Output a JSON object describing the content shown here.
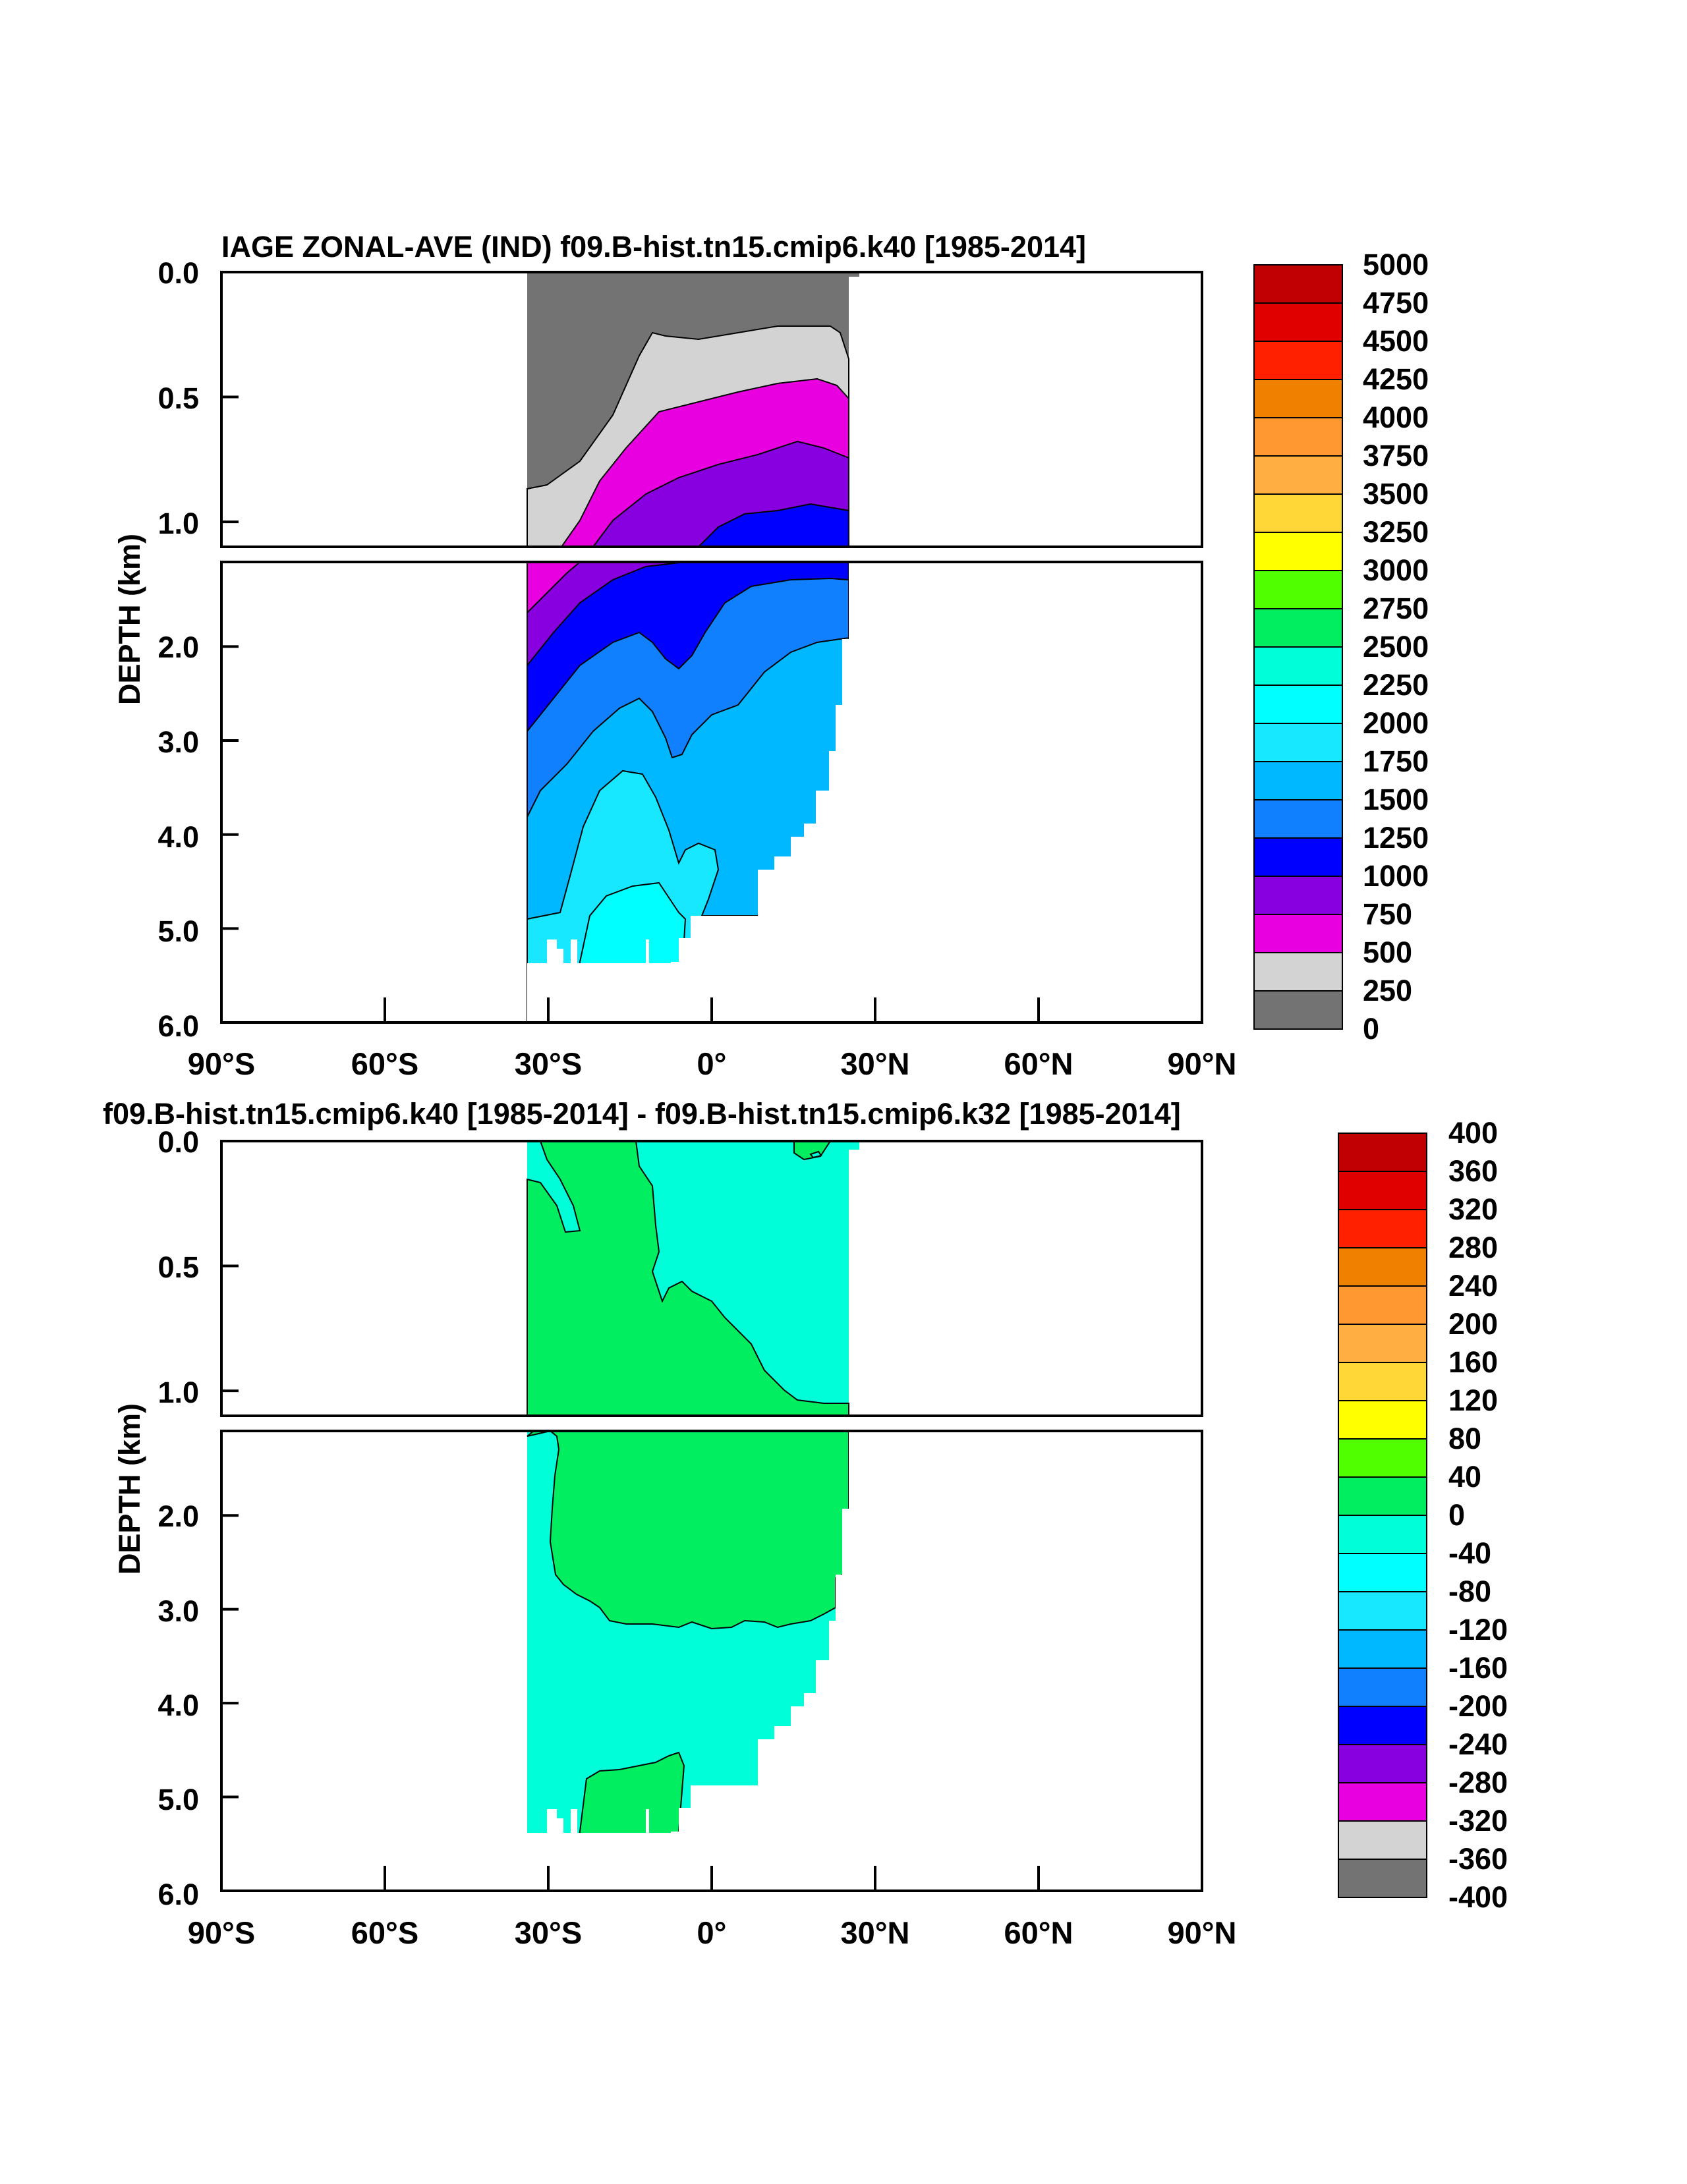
{
  "chart_data": [
    {
      "type": "contour",
      "title": "IAGE ZONAL-AVE (IND) f09.B-hist.tn15.cmip6.k40 [1985-2014]",
      "ylabel": "DEPTH (km)",
      "xlabel": "",
      "x_range": [
        -90,
        90
      ],
      "x_ticks": [
        "90°S",
        "60°S",
        "30°S",
        "0°",
        "30°N",
        "60°N",
        "90°N"
      ],
      "y_ticks_upper": [
        "0.0",
        "0.5",
        "1.0"
      ],
      "y_ticks_lower": [
        "2.0",
        "3.0",
        "4.0",
        "5.0",
        "6.0"
      ],
      "y_range_upper": [
        0,
        1.1
      ],
      "y_range_lower": [
        1.1,
        6.0
      ],
      "data_extent_lat": [
        -34,
        25
      ],
      "colorbar_labels": [
        "5000",
        "4750",
        "4500",
        "4250",
        "4000",
        "3750",
        "3500",
        "3250",
        "3000",
        "2750",
        "2500",
        "2250",
        "2000",
        "1750",
        "1500",
        "1250",
        "1000",
        "750",
        "500",
        "250",
        "0"
      ],
      "colorbar_colors": [
        "#c00000",
        "#e00000",
        "#ff2000",
        "#f08000",
        "#ff9830",
        "#ffb040",
        "#ffd838",
        "#ffff00",
        "#50ff00",
        "#00ee60",
        "#00ffd8",
        "#00ffff",
        "#18e8ff",
        "#00b8ff",
        "#1080ff",
        "#0000ff",
        "#8800e0",
        "#e800e0",
        "#d3d3d3",
        "#737373"
      ],
      "regions": [
        {
          "value_range": [
            0,
            250
          ],
          "color": "#737373"
        },
        {
          "value_range": [
            250,
            500
          ],
          "color": "#d3d3d3"
        },
        {
          "value_range": [
            500,
            750
          ],
          "color": "#e800e0"
        },
        {
          "value_range": [
            750,
            1000
          ],
          "color": "#8800e0"
        },
        {
          "value_range": [
            1000,
            1250
          ],
          "color": "#0000ff"
        },
        {
          "value_range": [
            1250,
            1500
          ],
          "color": "#1080ff"
        },
        {
          "value_range": [
            1500,
            1750
          ],
          "color": "#00b8ff"
        },
        {
          "value_range": [
            1750,
            2000
          ],
          "color": "#18e8ff"
        },
        {
          "value_range": [
            2000,
            2250
          ],
          "color": "#00ffff"
        }
      ]
    },
    {
      "type": "contour",
      "title": "f09.B-hist.tn15.cmip6.k40 [1985-2014] - f09.B-hist.tn15.cmip6.k32 [1985-2014]",
      "ylabel": "DEPTH (km)",
      "xlabel": "",
      "x_range": [
        -90,
        90
      ],
      "x_ticks": [
        "90°S",
        "60°S",
        "30°S",
        "0°",
        "30°N",
        "60°N",
        "90°N"
      ],
      "y_ticks_upper": [
        "0.0",
        "0.5",
        "1.0"
      ],
      "y_ticks_lower": [
        "2.0",
        "3.0",
        "4.0",
        "5.0",
        "6.0"
      ],
      "y_range_upper": [
        0,
        1.1
      ],
      "y_range_lower": [
        1.1,
        6.0
      ],
      "data_extent_lat": [
        -34,
        25
      ],
      "colorbar_labels": [
        "400",
        "360",
        "320",
        "280",
        "240",
        "200",
        "160",
        "120",
        "80",
        "40",
        "0",
        "-40",
        "-80",
        "-120",
        "-160",
        "-200",
        "-240",
        "-280",
        "-320",
        "-360",
        "-400"
      ],
      "colorbar_colors": [
        "#c00000",
        "#e00000",
        "#ff2000",
        "#f08000",
        "#ff9830",
        "#ffb040",
        "#ffd838",
        "#ffff00",
        "#50ff00",
        "#00ee60",
        "#00ffd8",
        "#00ffff",
        "#18e8ff",
        "#00b8ff",
        "#1080ff",
        "#0000ff",
        "#8800e0",
        "#e800e0",
        "#d3d3d3",
        "#737373"
      ],
      "regions": [
        {
          "value_range": [
            0,
            40
          ],
          "color": "#00ee60"
        },
        {
          "value_range": [
            -40,
            0
          ],
          "color": "#00ffd8"
        }
      ]
    }
  ]
}
